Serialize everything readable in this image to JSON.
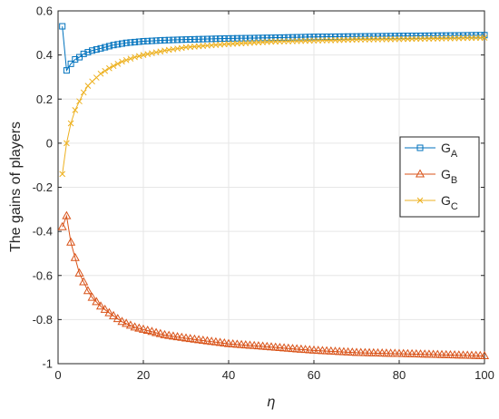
{
  "chart_data": {
    "type": "line",
    "title": "",
    "xlabel": "η",
    "ylabel": "The gains of players",
    "xlim": [
      0,
      100
    ],
    "ylim": [
      -1,
      0.6
    ],
    "xticks": [
      "0",
      "20",
      "40",
      "60",
      "80",
      "100"
    ],
    "yticks": [
      "-1",
      "-0.8",
      "-0.6",
      "-0.4",
      "-0.2",
      "0",
      "0.2",
      "0.4",
      "0.6"
    ],
    "grid": true,
    "legend_position": "right",
    "series": [
      {
        "name": "G",
        "subscript": "A",
        "color": "#0072BD",
        "marker": "square",
        "points": [
          [
            1,
            0.53
          ],
          [
            2,
            0.33
          ],
          [
            3,
            0.36
          ],
          [
            4,
            0.38
          ],
          [
            5,
            0.39
          ],
          [
            6,
            0.405
          ],
          [
            8,
            0.42
          ],
          [
            10,
            0.43
          ],
          [
            13,
            0.445
          ],
          [
            16,
            0.455
          ],
          [
            20,
            0.462
          ],
          [
            25,
            0.467
          ],
          [
            30,
            0.47
          ],
          [
            40,
            0.475
          ],
          [
            50,
            0.478
          ],
          [
            60,
            0.482
          ],
          [
            70,
            0.484
          ],
          [
            80,
            0.486
          ],
          [
            90,
            0.488
          ],
          [
            100,
            0.49
          ]
        ]
      },
      {
        "name": "G",
        "subscript": "B",
        "color": "#D95319",
        "marker": "triangle",
        "points": [
          [
            1,
            -0.38
          ],
          [
            2,
            -0.33
          ],
          [
            3,
            -0.45
          ],
          [
            4,
            -0.52
          ],
          [
            5,
            -0.59
          ],
          [
            6,
            -0.63
          ],
          [
            7,
            -0.67
          ],
          [
            8,
            -0.7
          ],
          [
            10,
            -0.74
          ],
          [
            12,
            -0.77
          ],
          [
            15,
            -0.81
          ],
          [
            18,
            -0.835
          ],
          [
            20,
            -0.845
          ],
          [
            25,
            -0.87
          ],
          [
            30,
            -0.885
          ],
          [
            40,
            -0.91
          ],
          [
            50,
            -0.925
          ],
          [
            60,
            -0.94
          ],
          [
            70,
            -0.95
          ],
          [
            80,
            -0.955
          ],
          [
            90,
            -0.96
          ],
          [
            100,
            -0.965
          ]
        ]
      },
      {
        "name": "G",
        "subscript": "C",
        "color": "#EDB120",
        "marker": "x",
        "points": [
          [
            1,
            -0.14
          ],
          [
            2,
            0.0
          ],
          [
            3,
            0.09
          ],
          [
            4,
            0.15
          ],
          [
            5,
            0.19
          ],
          [
            6,
            0.23
          ],
          [
            7,
            0.26
          ],
          [
            8,
            0.28
          ],
          [
            10,
            0.315
          ],
          [
            12,
            0.34
          ],
          [
            15,
            0.37
          ],
          [
            18,
            0.39
          ],
          [
            20,
            0.4
          ],
          [
            25,
            0.42
          ],
          [
            30,
            0.435
          ],
          [
            40,
            0.45
          ],
          [
            50,
            0.46
          ],
          [
            60,
            0.465
          ],
          [
            70,
            0.47
          ],
          [
            80,
            0.472
          ],
          [
            90,
            0.475
          ],
          [
            100,
            0.478
          ]
        ]
      }
    ]
  }
}
